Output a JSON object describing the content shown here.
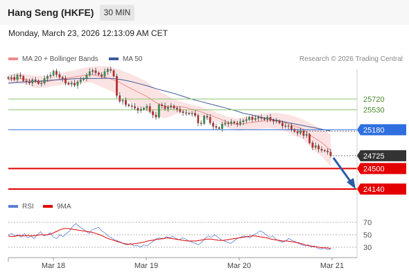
{
  "header": {
    "instrument": "Hang Seng (HKFE)",
    "interval": "30 MIN"
  },
  "timestamp": "Monday, March 23, 2026 12:13:09 AM CET",
  "copyright": "Research © 2026 Trading Central",
  "legend": {
    "price": [
      {
        "label": "MA 20 + Bollinger Bands",
        "color": "#f28b8b"
      },
      {
        "label": "MA 50",
        "color": "#3d5a99"
      }
    ],
    "rsi": [
      {
        "label": "RSI",
        "color": "#5b7fd4"
      },
      {
        "label": "9MA",
        "color": "#e00000"
      }
    ]
  },
  "chart_data": {
    "type": "candlestick",
    "x_ticks": [
      "Mar 18",
      "Mar 19",
      "Mar 20",
      "Mar 21"
    ],
    "price_levels": [
      {
        "value": 25720,
        "label": "25720",
        "style": "resistance",
        "color": "#8ec46b"
      },
      {
        "value": 25530,
        "label": "25530",
        "style": "resistance",
        "color": "#8ec46b"
      },
      {
        "value": 25180,
        "label": "25180",
        "style": "pivot",
        "color": "#2f6fe0"
      },
      {
        "value": 24725,
        "label": "24725",
        "style": "last-price",
        "color": "#333333"
      },
      {
        "value": 24500,
        "label": "24500",
        "style": "target",
        "color": "#e50000"
      },
      {
        "value": 24140,
        "label": "24140",
        "style": "target",
        "color": "#e50000"
      }
    ],
    "close_series": [
      26080,
      26100,
      26060,
      26140,
      26120,
      26040,
      26020,
      26000,
      26060,
      26040,
      25990,
      26000,
      26080,
      26120,
      26140,
      26210,
      26150,
      26100,
      26080,
      26000,
      25980,
      26000,
      25960,
      26020,
      26060,
      26080,
      26140,
      26200,
      26220,
      26180,
      26150,
      26120,
      26200,
      26240,
      26220,
      26120,
      25780,
      25680,
      25700,
      25620,
      25600,
      25590,
      25560,
      25520,
      25540,
      25560,
      25590,
      25500,
      25440,
      25400,
      25620,
      25600,
      25550,
      25580,
      25600,
      25560,
      25540,
      25500,
      25480,
      25470,
      25460,
      25470,
      25430,
      25300,
      25290,
      25420,
      25400,
      25300,
      25240,
      25220,
      25200,
      25280,
      25300,
      25290,
      25320,
      25300,
      25280,
      25320,
      25340,
      25360,
      25400,
      25360,
      25380,
      25400,
      25380,
      25360,
      25400,
      25350,
      25330,
      25340,
      25300,
      25250,
      25240,
      25250,
      25190,
      25150,
      25120,
      25160,
      25080,
      25100,
      24950,
      24870,
      24900,
      24840,
      24820,
      24810,
      24790,
      24725
    ],
    "ma50_series": [
      26000,
      26010,
      26020,
      26030,
      26040,
      26050,
      26060,
      26070,
      26080,
      26080,
      26080,
      26085,
      26080,
      26060,
      26030,
      25990,
      25950,
      25900,
      25860,
      25820,
      25770,
      25720,
      25680,
      25640,
      25600,
      25560,
      25520,
      25470,
      25440,
      25400,
      25370,
      25340,
      25310,
      25280,
      25250,
      25220,
      25190,
      25160
    ],
    "bollinger": {
      "mid": [
        26060,
        26090,
        26060,
        26020,
        26020,
        26050,
        26080,
        26100,
        26130,
        26150,
        26120,
        26080,
        26020,
        25930,
        25850,
        25770,
        25660,
        25590,
        25580,
        25580,
        25540,
        25490,
        25430,
        25370,
        25300,
        25270,
        25300,
        25320,
        25340,
        25340,
        25310,
        25250,
        25190,
        25060,
        24960,
        24820
      ],
      "upper": [
        26140,
        26180,
        26150,
        26130,
        26120,
        26150,
        26190,
        26220,
        26260,
        26290,
        26300,
        26290,
        26240,
        26180,
        26110,
        26030,
        25900,
        25800,
        25720,
        25660,
        25620,
        25580,
        25520,
        25460,
        25400,
        25380,
        25420,
        25450,
        25470,
        25480,
        25460,
        25420,
        25360,
        25280,
        25200,
        25100
      ],
      "lower": [
        25980,
        26000,
        25970,
        25910,
        25920,
        25950,
        25970,
        25980,
        26000,
        26010,
        25940,
        25870,
        25800,
        25680,
        25590,
        25510,
        25420,
        25380,
        25440,
        25500,
        25460,
        25400,
        25340,
        25280,
        25200,
        25160,
        25180,
        25190,
        25210,
        25200,
        25160,
        25080,
        25020,
        24840,
        24720,
        24540
      ]
    },
    "rsi": {
      "levels": [
        70,
        50,
        30
      ],
      "rsi_series": [
        49,
        52,
        48,
        50,
        46,
        52,
        45,
        48,
        44,
        50,
        55,
        48,
        50,
        53,
        46,
        44,
        50,
        47,
        52,
        56,
        64,
        68,
        63,
        60,
        56,
        52,
        58,
        60,
        62,
        56,
        53,
        48,
        45,
        42,
        40,
        38,
        35,
        34,
        36,
        32,
        33,
        30,
        34,
        32,
        36,
        40,
        44,
        45,
        43,
        47,
        45,
        48,
        44,
        42,
        45,
        43,
        40,
        38,
        36,
        34,
        38,
        44,
        48,
        46,
        50,
        46,
        42,
        40,
        38,
        36,
        40,
        44,
        46,
        48,
        47,
        45,
        50,
        52,
        56,
        54,
        50,
        46,
        48,
        43,
        40,
        38,
        40,
        44,
        41,
        39,
        36,
        34,
        32,
        34,
        30,
        32,
        28,
        27,
        29,
        26,
        27
      ],
      "ma9_series": [
        48,
        47,
        48,
        49,
        48,
        49,
        48,
        49,
        50,
        50,
        50,
        52,
        55,
        58,
        60,
        60,
        59,
        58,
        57,
        56,
        55,
        54,
        52,
        50,
        47,
        44,
        42,
        40,
        38,
        36,
        35,
        35,
        36,
        37,
        38,
        40,
        41,
        42,
        43,
        44,
        45,
        44,
        43,
        42,
        41,
        40,
        40,
        40,
        41,
        42,
        43,
        43,
        42,
        41,
        41,
        42,
        43,
        44,
        45,
        46,
        47,
        48,
        48,
        47,
        46,
        45,
        43,
        42,
        41,
        40,
        40,
        39,
        38,
        37,
        35,
        33,
        32,
        31,
        30,
        29,
        29,
        28
      ]
    }
  }
}
